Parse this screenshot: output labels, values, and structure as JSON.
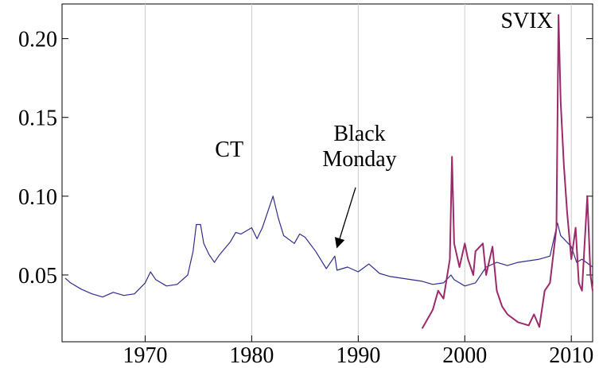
{
  "chart_data": {
    "type": "line",
    "xlim": [
      1962.2,
      2012
    ],
    "ylim": [
      0.0076,
      0.222
    ],
    "xticks": [
      1970,
      1980,
      1990,
      2000,
      2010
    ],
    "yticks": [
      0.05,
      {
        "value": 0.1,
        "label": "0.10"
      },
      0.15,
      {
        "value": 0.2,
        "label": "0.20"
      }
    ],
    "grid": "x",
    "annotations": [
      "Black Monday"
    ],
    "series": [
      {
        "name": "CT",
        "color": "#2e2e8c",
        "x": [
          1962.5,
          1963,
          1964,
          1965,
          1966,
          1967,
          1968,
          1969,
          1970,
          1970.5,
          1971,
          1972,
          1973,
          1974,
          1974.5,
          1974.8,
          1975.2,
          1975.5,
          1976,
          1976.5,
          1977,
          1978,
          1978.5,
          1979,
          1980,
          1980.5,
          1981,
          1981.5,
          1982,
          1982.5,
          1983,
          1984,
          1984.5,
          1985,
          1986,
          1987,
          1987.8,
          1988,
          1989,
          1990,
          1991,
          1992,
          1993,
          1994,
          1995,
          1996,
          1997,
          1998,
          1998.7,
          1999,
          2000,
          2001,
          2002,
          2003,
          2004,
          2005,
          2006,
          2007,
          2008,
          2008.7,
          2009,
          2010,
          2010.5,
          2011,
          2012
        ],
        "values": [
          0.048,
          0.045,
          0.041,
          0.038,
          0.036,
          0.039,
          0.037,
          0.038,
          0.045,
          0.052,
          0.047,
          0.043,
          0.044,
          0.05,
          0.065,
          0.082,
          0.082,
          0.07,
          0.063,
          0.058,
          0.063,
          0.071,
          0.077,
          0.076,
          0.08,
          0.073,
          0.08,
          0.09,
          0.1,
          0.086,
          0.075,
          0.07,
          0.076,
          0.074,
          0.065,
          0.054,
          0.062,
          0.053,
          0.055,
          0.052,
          0.057,
          0.051,
          0.049,
          0.048,
          0.047,
          0.046,
          0.044,
          0.045,
          0.05,
          0.047,
          0.043,
          0.045,
          0.055,
          0.058,
          0.056,
          0.058,
          0.059,
          0.06,
          0.062,
          0.083,
          0.075,
          0.068,
          0.058,
          0.06,
          0.055
        ]
      },
      {
        "name": "SVIX",
        "color": "#9c2a6a",
        "x": [
          1996,
          1996.5,
          1997,
          1997.5,
          1998,
          1998.6,
          1998.8,
          1999,
          1999.5,
          2000,
          2000.3,
          2000.8,
          2001,
          2001.7,
          2002,
          2002.6,
          2003,
          2003.5,
          2004,
          2005,
          2006,
          2006.5,
          2007,
          2007.5,
          2008,
          2008.6,
          2008.8,
          2009,
          2009.3,
          2009.6,
          2010,
          2010.4,
          2010.7,
          2011,
          2011.5,
          2011.8,
          2012
        ],
        "values": [
          0.016,
          0.022,
          0.028,
          0.04,
          0.035,
          0.06,
          0.125,
          0.07,
          0.055,
          0.07,
          0.06,
          0.05,
          0.065,
          0.07,
          0.05,
          0.068,
          0.04,
          0.03,
          0.025,
          0.02,
          0.018,
          0.025,
          0.017,
          0.04,
          0.045,
          0.08,
          0.215,
          0.16,
          0.12,
          0.09,
          0.06,
          0.08,
          0.045,
          0.04,
          0.1,
          0.05,
          0.04
        ]
      }
    ]
  }
}
